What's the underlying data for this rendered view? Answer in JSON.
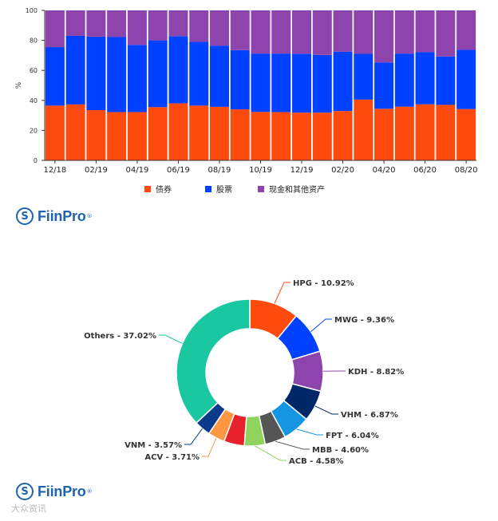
{
  "brand": {
    "name": "FiinPro",
    "reg": "®",
    "mark": "S"
  },
  "watermark": "大众资讯",
  "chart_data": [
    {
      "type": "bar",
      "stacked": true,
      "percent": true,
      "ylabel": "%",
      "ylim": [
        0,
        100
      ],
      "yticks": [
        0,
        20,
        40,
        60,
        80,
        100
      ],
      "grid": false,
      "categories": [
        "12/18",
        "01/19",
        "02/19",
        "03/19",
        "04/19",
        "05/19",
        "06/19",
        "07/19",
        "08/19",
        "09/19",
        "10/19",
        "11/19",
        "12/19",
        "01/20",
        "02/20",
        "03/20",
        "04/20",
        "05/20",
        "06/20",
        "07/20",
        "08/20"
      ],
      "tick_labels": {
        "0": "12/18",
        "2": "02/19",
        "4": "04/19",
        "6": "06/19",
        "8": "08/19",
        "10": "10/19",
        "12": "12/19",
        "14": "02/20",
        "16": "04/20",
        "18": "06/20",
        "20": "08/20"
      },
      "series": [
        {
          "name": "债券",
          "color": "#ff4a0d",
          "values": [
            36.5,
            37.3,
            33.5,
            32.2,
            32.2,
            35.5,
            38,
            36.5,
            35.7,
            34,
            32.3,
            32.2,
            31.8,
            31.8,
            32.9,
            40.5,
            34.4,
            35.8,
            37.4,
            37,
            34.2
          ]
        },
        {
          "name": "股票",
          "color": "#0040ff",
          "values": [
            39,
            45.7,
            49,
            50,
            44.8,
            44.5,
            44.8,
            42.5,
            40.8,
            39.5,
            38.9,
            39,
            39.3,
            38.5,
            39.6,
            30.5,
            30.9,
            35.4,
            34.7,
            32.3,
            39.5
          ]
        },
        {
          "name": "现金和其他资产",
          "color": "#8e44ad",
          "values": [
            24.5,
            17,
            17.5,
            17.8,
            23,
            20,
            17.2,
            21,
            23.5,
            26.5,
            28.8,
            28.8,
            28.9,
            29.7,
            27.5,
            29,
            34.7,
            28.8,
            27.9,
            30.7,
            26.3
          ]
        }
      ],
      "legend_position": "bottom"
    },
    {
      "type": "pie",
      "donut": true,
      "slices": [
        {
          "label": "HPG - 10.92%",
          "value": 10.92,
          "color": "#ff4a0d"
        },
        {
          "label": "MWG - 9.36%",
          "value": 9.36,
          "color": "#0040ff"
        },
        {
          "label": "KDH - 8.82%",
          "value": 8.82,
          "color": "#8e44ad"
        },
        {
          "label": "VHM - 6.87%",
          "value": 6.87,
          "color": "#002868"
        },
        {
          "label": "FPT - 6.04%",
          "value": 6.04,
          "color": "#1596e3"
        },
        {
          "label": "MBB - 4.60%",
          "value": 4.6,
          "color": "#555555"
        },
        {
          "label": "ACB - 4.58%",
          "value": 4.58,
          "color": "#8ed35b"
        },
        {
          "label": "",
          "value": 4.5,
          "color": "#e8202a"
        },
        {
          "label": "ACV - 3.71%",
          "value": 3.71,
          "color": "#ff9640"
        },
        {
          "label": "VNM - 3.57%",
          "value": 3.57,
          "color": "#0a3a8a"
        },
        {
          "label": "Others - 37.02%",
          "value": 37.02,
          "color": "#19c8a0"
        }
      ]
    }
  ]
}
